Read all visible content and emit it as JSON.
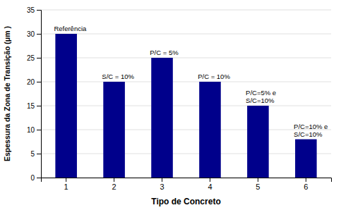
{
  "chart_data": {
    "type": "bar",
    "categories": [
      "1",
      "2",
      "3",
      "4",
      "5",
      "6"
    ],
    "values": [
      30,
      20,
      25,
      20,
      15,
      8
    ],
    "color": "#00008B",
    "xlabel": "Tipo de Concreto",
    "ylabel": "Espessura da Zona de Transição (μm )",
    "ylim": [
      0,
      35
    ],
    "yticks": [
      0,
      5,
      10,
      15,
      20,
      25,
      30,
      35
    ],
    "grid": true,
    "annotations": [
      {
        "text": "Referência",
        "category": "1"
      },
      {
        "text": "S/C = 10%",
        "category": "2"
      },
      {
        "text": "P/C = 5%",
        "category": "3"
      },
      {
        "text": "P/C = 10%",
        "category": "4"
      },
      {
        "text": "P/C=5% e\nS/C=10%",
        "category": "5"
      },
      {
        "text": "P/C=10% e\nS/C=10%",
        "category": "6"
      }
    ]
  }
}
